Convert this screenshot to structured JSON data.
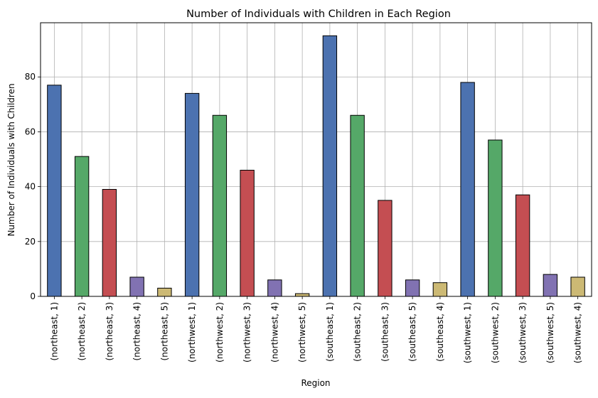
{
  "chart_data": {
    "type": "bar",
    "title": "Number of Individuals with Children in Each Region",
    "xlabel": "Region",
    "ylabel": "Number of Individuals with Children",
    "ylim": [
      0,
      99.75
    ],
    "yticks": [
      0,
      20,
      40,
      60,
      80
    ],
    "grid": true,
    "legend": "none",
    "categories": [
      "(northeast, 1)",
      "(northeast, 2)",
      "(northeast, 3)",
      "(northeast, 4)",
      "(northeast, 5)",
      "(northwest, 1)",
      "(northwest, 2)",
      "(northwest, 3)",
      "(northwest, 4)",
      "(northwest, 5)",
      "(southeast, 1)",
      "(southeast, 2)",
      "(southeast, 3)",
      "(southeast, 5)",
      "(southeast, 4)",
      "(southwest, 1)",
      "(southwest, 2)",
      "(southwest, 3)",
      "(southwest, 5)",
      "(southwest, 4)"
    ],
    "values": [
      77,
      51,
      39,
      7,
      3,
      74,
      66,
      46,
      6,
      1,
      95,
      66,
      35,
      6,
      5,
      78,
      57,
      37,
      8,
      7
    ],
    "colors": [
      "#4c72b0",
      "#55a868",
      "#c44e52",
      "#8172b2",
      "#ccb974",
      "#4c72b0",
      "#55a868",
      "#c44e52",
      "#8172b2",
      "#ccb974",
      "#4c72b0",
      "#55a868",
      "#c44e52",
      "#8172b2",
      "#ccb974",
      "#4c72b0",
      "#55a868",
      "#c44e52",
      "#8172b2",
      "#ccb974"
    ],
    "edge_color": "#000000",
    "grid_color": "#b0b0b0"
  }
}
